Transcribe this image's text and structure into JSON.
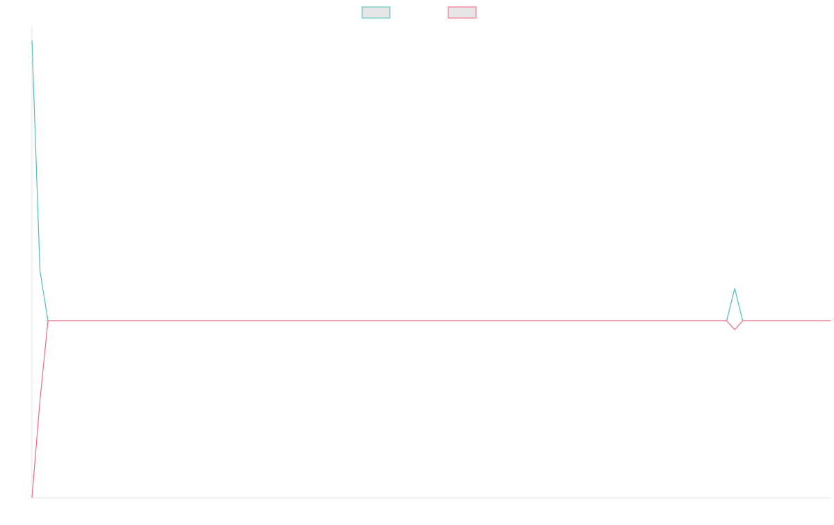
{
  "chart_data": {
    "type": "line",
    "title": "",
    "xlabel": "",
    "ylabel": "",
    "grid": false,
    "legend_position": "top",
    "x": [
      0,
      1,
      2,
      87,
      88,
      89,
      100
    ],
    "ylim": [
      -1.1,
      0.5
    ],
    "series": [
      {
        "name": "",
        "color": "#4bc0c0",
        "fill": "#e6e6e6",
        "values": [
          0.45,
          -0.33,
          -0.5,
          -0.5,
          -0.39,
          -0.5,
          -0.5
        ]
      },
      {
        "name": "",
        "color": "#ff6384",
        "fill": "#e6e6e6",
        "values": [
          -1.1,
          -0.77,
          -0.5,
          -0.5,
          -0.53,
          -0.5,
          -0.5
        ]
      }
    ]
  }
}
